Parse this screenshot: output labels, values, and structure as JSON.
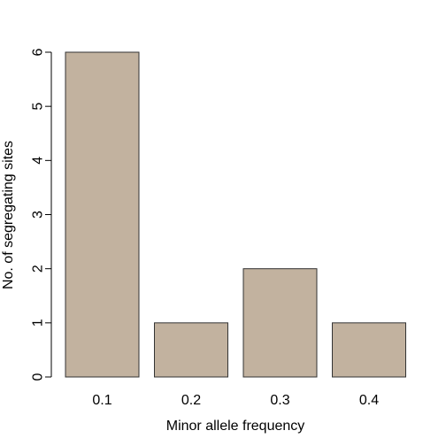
{
  "chart_data": {
    "type": "bar",
    "categories": [
      "0.1",
      "0.2",
      "0.3",
      "0.4"
    ],
    "values": [
      6,
      1,
      2,
      1
    ],
    "xlabel": "Minor allele frequency",
    "ylabel": "No. of segregating sites",
    "ylim": [
      0,
      6
    ],
    "yticks": [
      0,
      1,
      2,
      3,
      4,
      5,
      6
    ],
    "grid": false,
    "bar_color": "#c2b29f",
    "bar_edge_color": "#333333"
  }
}
